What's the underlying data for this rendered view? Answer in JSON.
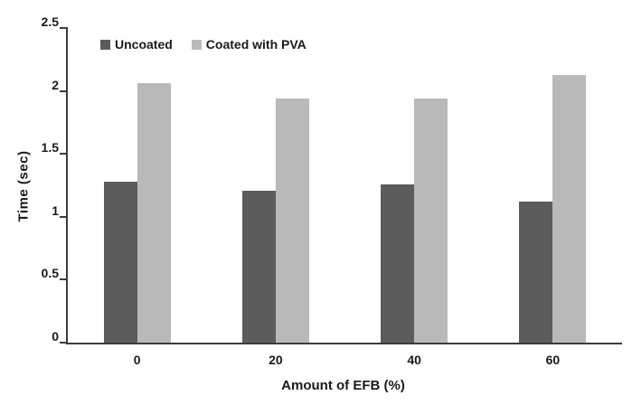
{
  "chart_data": {
    "type": "bar",
    "title": "",
    "categories": [
      "0",
      "20",
      "40",
      "60"
    ],
    "series": [
      {
        "name": "Uncoated",
        "color": "#5c5c5c",
        "values": [
          1.28,
          1.21,
          1.26,
          1.12
        ]
      },
      {
        "name": "Coated with PVA",
        "color": "#b9b9b9",
        "values": [
          2.06,
          1.94,
          1.94,
          2.13
        ]
      }
    ],
    "xlabel": "Amount of EFB (%)",
    "ylabel": "Time (sec)",
    "ylim": [
      0,
      2.5
    ],
    "yticks": [
      "0",
      "0.5",
      "1",
      "1.5",
      "2",
      "2.5"
    ],
    "grid": false,
    "legend_position": "top-left-inside",
    "colors": {
      "axis": "#3c3c3c",
      "text": "#1a1a1a",
      "background": "#ffffff"
    },
    "layout": {
      "bar_width_fraction_of_slot": 0.242
    }
  }
}
